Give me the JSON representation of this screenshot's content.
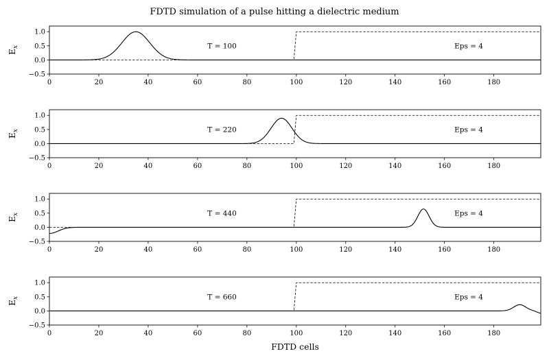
{
  "figure": {
    "title": "FDTD simulation of a pulse hitting a dielectric medium",
    "xlabel": "FDTD cells",
    "ylabel": "E",
    "ylabel_sub": "x"
  },
  "chart_data": [
    {
      "type": "line",
      "xlim": [
        0,
        199
      ],
      "ylim": [
        -0.5,
        1.2
      ],
      "xticks": [
        0,
        20,
        40,
        60,
        80,
        100,
        120,
        140,
        160,
        180
      ],
      "yticks": [
        -0.5,
        0.0,
        0.5,
        1.0
      ],
      "ytick_labels": [
        "−0.5",
        "0.0",
        "0.5",
        "1.0"
      ],
      "annotations": [
        {
          "name": "time-step",
          "text": "T = 100",
          "x": 64,
          "y": 0.5
        },
        {
          "name": "permittivity",
          "text": "Eps = 4",
          "x": 164,
          "y": 0.5
        }
      ],
      "series": [
        {
          "style": "solid",
          "pulses": [
            {
              "center": 35,
              "amplitude": 1.0,
              "width": 8
            }
          ],
          "x": [],
          "y": []
        },
        {
          "style": "dashed",
          "x": [
            0,
            99,
            100,
            199
          ],
          "y": [
            0,
            0,
            1,
            1
          ]
        }
      ]
    },
    {
      "type": "line",
      "xlim": [
        0,
        199
      ],
      "ylim": [
        -0.5,
        1.2
      ],
      "xticks": [
        0,
        20,
        40,
        60,
        80,
        100,
        120,
        140,
        160,
        180
      ],
      "yticks": [
        -0.5,
        0.0,
        0.5,
        1.0
      ],
      "ytick_labels": [
        "−0.5",
        "0.0",
        "0.5",
        "1.0"
      ],
      "annotations": [
        {
          "name": "time-step",
          "text": "T = 220",
          "x": 64,
          "y": 0.5
        },
        {
          "name": "permittivity",
          "text": "Eps = 4",
          "x": 164,
          "y": 0.5
        }
      ],
      "series": [
        {
          "style": "solid",
          "pulses": [
            {
              "center": 94,
              "amplitude": 0.9,
              "width": 6
            }
          ],
          "x": [],
          "y": []
        },
        {
          "style": "dashed",
          "x": [
            0,
            99,
            100,
            199
          ],
          "y": [
            0,
            0,
            1,
            1
          ]
        }
      ]
    },
    {
      "type": "line",
      "xlim": [
        0,
        199
      ],
      "ylim": [
        -0.5,
        1.2
      ],
      "xticks": [
        0,
        20,
        40,
        60,
        80,
        100,
        120,
        140,
        160,
        180
      ],
      "yticks": [
        -0.5,
        0.0,
        0.5,
        1.0
      ],
      "ytick_labels": [
        "−0.5",
        "0.0",
        "0.5",
        "1.0"
      ],
      "annotations": [
        {
          "name": "time-step",
          "text": "T = 440",
          "x": 64,
          "y": 0.5
        },
        {
          "name": "permittivity",
          "text": "Eps = 4",
          "x": 164,
          "y": 0.5
        }
      ],
      "series": [
        {
          "style": "solid",
          "pulses": [
            {
              "center": 151.5,
              "amplitude": 0.65,
              "width": 3.2
            },
            {
              "center": 0,
              "amplitude": -0.22,
              "width": 5
            }
          ],
          "x": [],
          "y": []
        },
        {
          "style": "dashed",
          "x": [
            0,
            99,
            100,
            199
          ],
          "y": [
            0,
            0,
            1,
            1
          ]
        }
      ]
    },
    {
      "type": "line",
      "xlim": [
        0,
        199
      ],
      "ylim": [
        -0.5,
        1.2
      ],
      "xticks": [
        0,
        20,
        40,
        60,
        80,
        100,
        120,
        140,
        160,
        180
      ],
      "yticks": [
        -0.5,
        0.0,
        0.5,
        1.0
      ],
      "ytick_labels": [
        "−0.5",
        "0.0",
        "0.5",
        "1.0"
      ],
      "annotations": [
        {
          "name": "time-step",
          "text": "T = 660",
          "x": 64,
          "y": 0.5
        },
        {
          "name": "permittivity",
          "text": "Eps = 4",
          "x": 164,
          "y": 0.5
        }
      ],
      "series": [
        {
          "style": "solid",
          "pulses": [
            {
              "center": 190.5,
              "amplitude": 0.22,
              "width": 3.5
            },
            {
              "center": 199,
              "amplitude": -0.08,
              "width": 2
            }
          ],
          "x": [],
          "y": []
        },
        {
          "style": "dashed",
          "x": [
            0,
            99,
            100,
            199
          ],
          "y": [
            0,
            0,
            1,
            1
          ]
        }
      ]
    }
  ]
}
